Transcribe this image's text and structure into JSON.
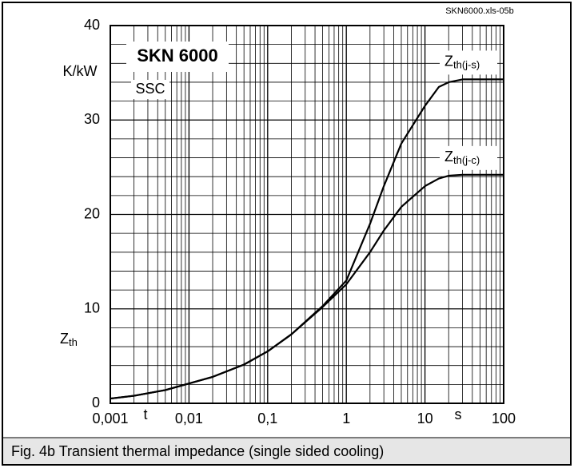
{
  "chart_data": {
    "type": "line",
    "file_label": "SKN6000.xls-05b",
    "title": "SKN 6000",
    "subtitle": "SSC",
    "y_unit": "K/kW",
    "ylabel": "Z",
    "ylabel_sub": "th",
    "xlabel": "t",
    "x_unit": "s",
    "caption": "Fig. 4b Transient thermal impedance (single sided cooling)",
    "log_x": true,
    "grid": true,
    "xlim": [
      0.001,
      100
    ],
    "ylim": [
      0,
      40
    ],
    "xticks": [
      {
        "value": 0.001,
        "label": "0,001"
      },
      {
        "value": 0.01,
        "label": "0,01"
      },
      {
        "value": 0.1,
        "label": "0,1"
      },
      1,
      10,
      100
    ],
    "yticks": [
      0,
      10,
      20,
      30,
      40
    ],
    "x_minor_ticks": [
      0.002,
      0.003,
      0.004,
      0.005,
      0.006,
      0.007,
      0.008,
      0.009,
      0.02,
      0.03,
      0.04,
      0.05,
      0.06,
      0.07,
      0.08,
      0.09,
      0.2,
      0.3,
      0.4,
      0.5,
      0.6,
      0.7,
      0.8,
      0.9,
      2,
      3,
      4,
      5,
      6,
      7,
      8,
      9,
      20,
      30,
      40,
      50,
      60,
      70,
      80,
      90
    ],
    "y_minor_ticks": [
      2,
      4,
      6,
      8,
      12,
      14,
      16,
      18,
      22,
      24,
      26,
      28,
      32,
      34,
      36,
      38
    ],
    "x": [
      0.001,
      0.002,
      0.005,
      0.01,
      0.02,
      0.05,
      0.1,
      0.2,
      0.5,
      1,
      2,
      3,
      5,
      10,
      15,
      20,
      30,
      50,
      100
    ],
    "series": [
      {
        "name": "Z",
        "name_sub": "th(j-s)",
        "color": "#000000",
        "values": [
          0.5,
          0.8,
          1.4,
          2.1,
          2.8,
          4.1,
          5.5,
          7.3,
          10.3,
          13,
          19,
          23,
          27.5,
          31.5,
          33.5,
          34,
          34.3,
          34.3,
          34.3
        ]
      },
      {
        "name": "Z",
        "name_sub": "th(j-c)",
        "color": "#000000",
        "values": [
          0.5,
          0.8,
          1.4,
          2.1,
          2.8,
          4.1,
          5.5,
          7.3,
          10.2,
          12.6,
          16,
          18.3,
          20.8,
          23,
          23.8,
          24.1,
          24.2,
          24.2,
          24.2
        ]
      }
    ]
  }
}
